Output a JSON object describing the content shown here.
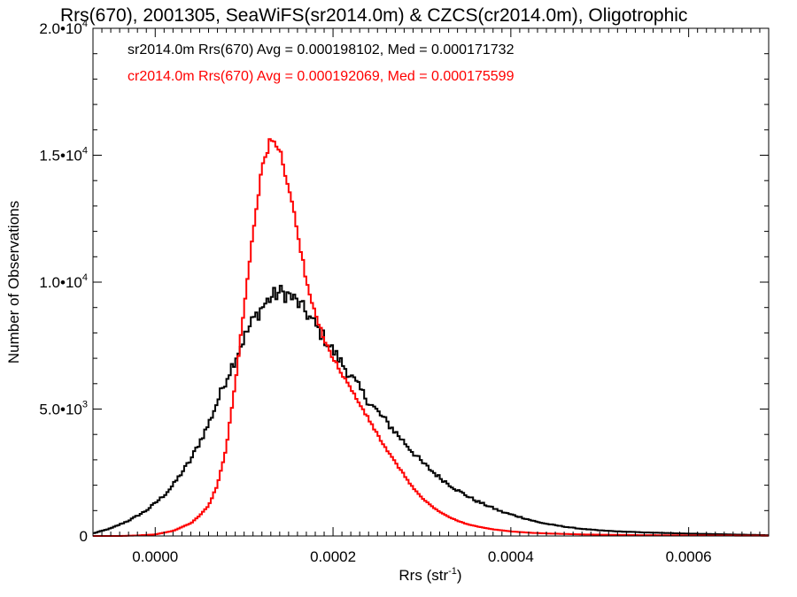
{
  "chart_data": {
    "type": "line",
    "style": "histogram-step",
    "title": "Rrs(670), 2001305, SeaWiFS(sr2014.0m) & CZCS(cr2014.0m), Oligotrophic",
    "xlabel": {
      "base": "Rrs (str",
      "sup": "-1",
      "end": ")"
    },
    "ylabel": "Number of Observations",
    "xlim": [
      -7e-05,
      0.00069
    ],
    "ylim": [
      0,
      20000
    ],
    "grid": false,
    "legend_position": "top-left",
    "x_ticks": [
      {
        "value": 0.0,
        "label": "0.0000"
      },
      {
        "value": 0.0002,
        "label": "0.0002"
      },
      {
        "value": 0.0004,
        "label": "0.0004"
      },
      {
        "value": 0.0006,
        "label": "0.0006"
      }
    ],
    "y_ticks": [
      {
        "value": 0,
        "label": "0",
        "sup": ""
      },
      {
        "value": 5000,
        "label": "5.0•10",
        "sup": "3"
      },
      {
        "value": 10000,
        "label": "1.0•10",
        "sup": "4"
      },
      {
        "value": 15000,
        "label": "1.5•10",
        "sup": "4"
      },
      {
        "value": 20000,
        "label": "2.0•10",
        "sup": "4"
      }
    ],
    "series": [
      {
        "name": "sr2014.0m",
        "legend": "sr2014.0m Rrs(670) Avg = 0.000198102, Med = 0.000171732",
        "color": "#000000",
        "x": [
          -7e-05,
          -6e-05,
          -5e-05,
          -4e-05,
          -3e-05,
          -2e-05,
          -1e-05,
          0.0,
          1e-05,
          2e-05,
          3e-05,
          4e-05,
          5e-05,
          6e-05,
          7e-05,
          8e-05,
          9e-05,
          0.0001,
          0.00011,
          0.00012,
          0.00013,
          0.00014,
          0.00015,
          0.00016,
          0.00017,
          0.00018,
          0.00019,
          0.0002,
          0.00021,
          0.00022,
          0.00023,
          0.00024,
          0.00025,
          0.00026,
          0.00027,
          0.00028,
          0.00029,
          0.0003,
          0.00031,
          0.00032,
          0.00033,
          0.00034,
          0.00035,
          0.00036,
          0.00037,
          0.00038,
          0.00039,
          0.0004,
          0.00041,
          0.00042,
          0.00043,
          0.00044,
          0.00045,
          0.00046,
          0.00047,
          0.00048,
          0.00049,
          0.0005,
          0.00052,
          0.00055,
          0.00058,
          0.00062,
          0.00066,
          0.00069
        ],
        "y": [
          100,
          200,
          300,
          450,
          600,
          800,
          1000,
          1300,
          1600,
          2000,
          2500,
          3000,
          3700,
          4400,
          5300,
          6200,
          7000,
          7800,
          8500,
          9000,
          9400,
          9600,
          9500,
          9200,
          8800,
          8300,
          7800,
          7300,
          6800,
          6300,
          5800,
          5300,
          4900,
          4500,
          4100,
          3700,
          3300,
          2900,
          2600,
          2300,
          2050,
          1800,
          1600,
          1400,
          1250,
          1100,
          950,
          850,
          750,
          650,
          550,
          480,
          420,
          370,
          320,
          280,
          250,
          220,
          180,
          140,
          110,
          80,
          50,
          30
        ]
      },
      {
        "name": "cr2014.0m",
        "legend": "cr2014.0m Rrs(670) Avg = 0.000192069, Med = 0.000175599",
        "color": "#ff0000",
        "x": [
          -7e-05,
          -4e-05,
          -2e-05,
          0.0,
          2e-05,
          4e-05,
          5e-05,
          6e-05,
          7e-05,
          8e-05,
          9e-05,
          0.0001,
          0.00011,
          0.00012,
          0.00013,
          0.00014,
          0.00015,
          0.00016,
          0.00017,
          0.00018,
          0.00019,
          0.0002,
          0.00021,
          0.00022,
          0.00023,
          0.00024,
          0.00025,
          0.00026,
          0.00027,
          0.00028,
          0.00029,
          0.0003,
          0.00031,
          0.00032,
          0.00033,
          0.00034,
          0.00035,
          0.00036,
          0.00037,
          0.00038,
          0.0004,
          0.00042,
          0.00044,
          0.00046,
          0.00048,
          0.0005,
          0.00055,
          0.00069
        ],
        "y": [
          0,
          0,
          20,
          60,
          200,
          500,
          800,
          1200,
          2000,
          3500,
          6000,
          9000,
          12000,
          14500,
          15600,
          15200,
          13800,
          12000,
          10000,
          8700,
          7800,
          7000,
          6400,
          5800,
          5200,
          4600,
          4000,
          3400,
          2900,
          2400,
          1900,
          1500,
          1200,
          950,
          750,
          600,
          480,
          390,
          320,
          260,
          180,
          130,
          100,
          80,
          60,
          50,
          30,
          10
        ]
      }
    ]
  }
}
